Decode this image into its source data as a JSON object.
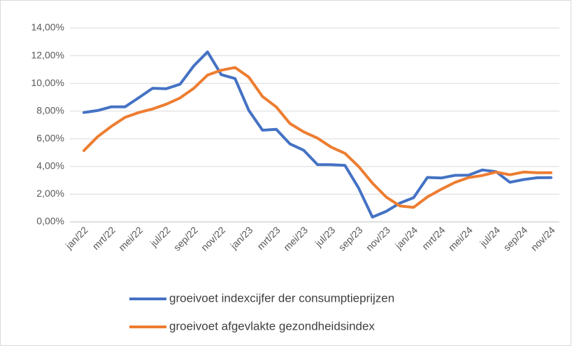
{
  "chart_data": {
    "type": "line",
    "categories": [
      "jan/22",
      null,
      "mrt/22",
      null,
      "mei/22",
      null,
      "jul/22",
      null,
      "sep/22",
      null,
      "nov/22",
      null,
      "jan/23",
      null,
      "mrt/23",
      null,
      "mei/23",
      null,
      "jul/23",
      null,
      "sep/23",
      null,
      "nov/23",
      null,
      "jan/24",
      null,
      "mrt/24",
      null,
      "mei/24",
      null,
      "jul/24",
      null,
      "sep/24",
      null,
      "nov/24"
    ],
    "series": [
      {
        "name": "groeivoet indexcijfer der consumptieprijzen",
        "color": "#4472c4",
        "values": [
          7.9,
          8.04,
          8.31,
          8.31,
          8.97,
          9.65,
          9.62,
          9.94,
          11.27,
          12.27,
          10.63,
          10.35,
          8.05,
          6.62,
          6.68,
          5.63,
          5.17,
          4.14,
          4.13,
          4.08,
          2.44,
          0.35,
          0.76,
          1.36,
          1.75,
          3.21,
          3.17,
          3.36,
          3.37,
          3.75,
          3.63,
          2.86,
          3.06,
          3.19,
          3.2
        ]
      },
      {
        "name": "groeivoet afgevlakte gezondheidsindex",
        "color": "#ed7d31",
        "values": [
          5.15,
          6.15,
          6.9,
          7.55,
          7.9,
          8.15,
          8.5,
          8.95,
          9.65,
          10.6,
          10.95,
          11.15,
          10.45,
          9.05,
          8.3,
          7.1,
          6.5,
          6.05,
          5.4,
          4.95,
          4.0,
          2.8,
          1.8,
          1.15,
          1.05,
          1.8,
          2.35,
          2.85,
          3.2,
          3.35,
          3.6,
          3.4,
          3.6,
          3.55,
          3.55
        ]
      }
    ],
    "ylim": [
      0,
      14
    ],
    "yticks": [
      {
        "value": 0,
        "label": "0,00%"
      },
      {
        "value": 2,
        "label": "2,00%"
      },
      {
        "value": 4,
        "label": "4,00%"
      },
      {
        "value": 6,
        "label": "6,00%"
      },
      {
        "value": 8,
        "label": "8,00%"
      },
      {
        "value": 10,
        "label": "10,00%"
      },
      {
        "value": 12,
        "label": "12,00%"
      },
      {
        "value": 14,
        "label": "14,00%"
      }
    ],
    "grid": true,
    "legend": "bottom"
  }
}
